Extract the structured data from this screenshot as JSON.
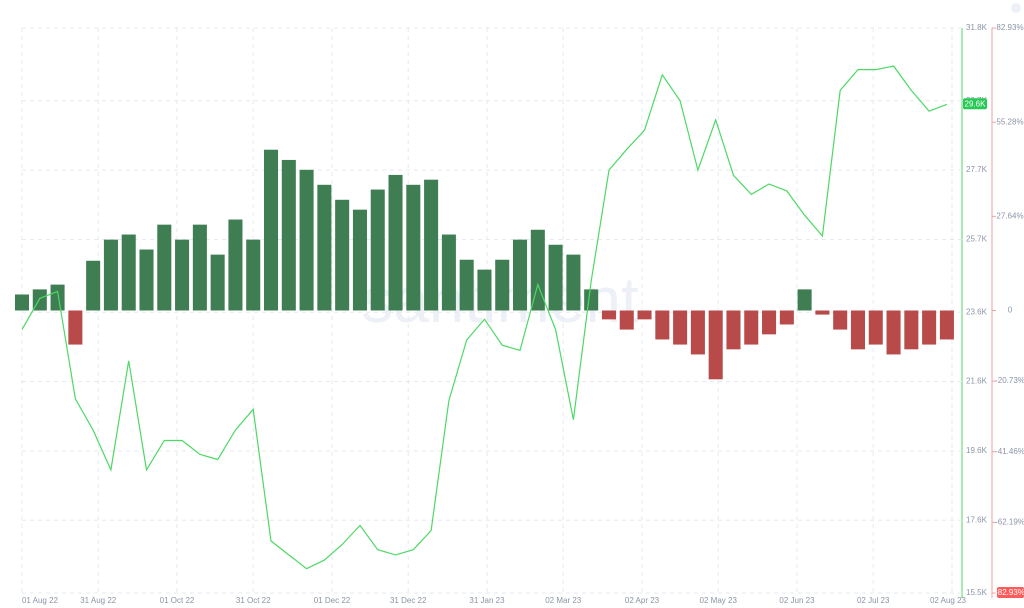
{
  "chart_data": {
    "type": "combo",
    "watermark": "santiment",
    "x": [
      "2022-08-01",
      "2022-08-08",
      "2022-08-15",
      "2022-08-22",
      "2022-08-29",
      "2022-09-05",
      "2022-09-12",
      "2022-09-19",
      "2022-09-26",
      "2022-10-03",
      "2022-10-10",
      "2022-10-17",
      "2022-10-24",
      "2022-10-31",
      "2022-11-07",
      "2022-11-14",
      "2022-11-21",
      "2022-11-28",
      "2022-12-05",
      "2022-12-12",
      "2022-12-19",
      "2022-12-26",
      "2023-01-02",
      "2023-01-09",
      "2023-01-16",
      "2023-01-23",
      "2023-01-30",
      "2023-02-06",
      "2023-02-13",
      "2023-02-20",
      "2023-02-27",
      "2023-03-06",
      "2023-03-13",
      "2023-03-20",
      "2023-03-27",
      "2023-04-03",
      "2023-04-10",
      "2023-04-17",
      "2023-04-24",
      "2023-05-01",
      "2023-05-08",
      "2023-05-15",
      "2023-05-22",
      "2023-05-29",
      "2023-06-05",
      "2023-06-12",
      "2023-06-19",
      "2023-06-26",
      "2023-07-03",
      "2023-07-10",
      "2023-07-17",
      "2023-07-24",
      "2023-07-31"
    ],
    "xlim": [
      "2022-08-01",
      "2023-08-02"
    ],
    "xticks": [
      {
        "value": "2022-08-01",
        "label": "01 Aug 22"
      },
      {
        "value": "2022-08-31",
        "label": "31 Aug 22"
      },
      {
        "value": "2022-10-01",
        "label": "01 Oct 22"
      },
      {
        "value": "2022-10-31",
        "label": "31 Oct 22"
      },
      {
        "value": "2022-12-01",
        "label": "01 Dec 22"
      },
      {
        "value": "2022-12-31",
        "label": "31 Dec 22"
      },
      {
        "value": "2023-01-31",
        "label": "31 Jan 23"
      },
      {
        "value": "2023-03-02",
        "label": "02 Mar 23"
      },
      {
        "value": "2023-04-02",
        "label": "02 Apr 23"
      },
      {
        "value": "2023-05-02",
        "label": "02 May 23"
      },
      {
        "value": "2023-06-02",
        "label": "02 Jun 23"
      },
      {
        "value": "2023-07-02",
        "label": "02 Jul 23"
      },
      {
        "value": "2023-08-02",
        "label": "02 Aug 23"
      }
    ],
    "ylim": [
      15500,
      31800
    ],
    "yticks": [
      {
        "value": 31800,
        "label": "31.8K"
      },
      {
        "value": 29700,
        "label": "29.7K"
      },
      {
        "value": 27700,
        "label": "27.7K"
      },
      {
        "value": 25700,
        "label": "25.7K"
      },
      {
        "value": 23600,
        "label": "23.6K"
      },
      {
        "value": 21600,
        "label": "21.6K"
      },
      {
        "value": 19600,
        "label": "19.6K"
      },
      {
        "value": 17600,
        "label": "17.6K"
      },
      {
        "value": 15500,
        "label": "15.5K"
      }
    ],
    "y2lim": [
      -82.93,
      82.93
    ],
    "y2ticks": [
      {
        "value": 82.93,
        "label": "82.93%"
      },
      {
        "value": 55.28,
        "label": "55.28%"
      },
      {
        "value": 27.64,
        "label": "27.64%"
      },
      0,
      {
        "value": -20.73,
        "label": "-20.73%"
      },
      {
        "value": -41.46,
        "label": "-41.46%"
      },
      {
        "value": -62.19,
        "label": "-62.19%"
      },
      {
        "value": -82.93,
        "label": "-82.93%"
      }
    ],
    "last_value": {
      "value": 29600,
      "label": "29.6K"
    },
    "grid": true,
    "series": [
      {
        "type": "bar",
        "axis": "y2",
        "color": "#3f7d52",
        "negative_color": "#b84a4a",
        "values": [
          4.7,
          6.2,
          7.6,
          -10,
          14.6,
          20.8,
          22.3,
          17.9,
          25.2,
          20.8,
          25.2,
          16.4,
          26.7,
          20.8,
          47.2,
          44.2,
          41.3,
          36.9,
          32.5,
          29.6,
          35.5,
          39.8,
          36.9,
          38.4,
          22.3,
          14.9,
          12.0,
          14.9,
          20.8,
          23.7,
          19.3,
          16.4,
          6.2,
          -2.6,
          -5.6,
          -2.6,
          -8.5,
          -10.0,
          -12.9,
          -20.2,
          -11.4,
          -10.0,
          -7.0,
          -4.1,
          6.2,
          -1.2,
          -5.6,
          -11.4,
          -10.0,
          -12.9,
          -11.4,
          -10.0,
          -8.5
        ]
      },
      {
        "type": "line",
        "color": "#4cd964",
        "values": [
          23100,
          24000,
          24200,
          21100,
          20200,
          19050,
          22200,
          19050,
          19900,
          19900,
          19500,
          19350,
          20200,
          20800,
          17000,
          16600,
          16200,
          16450,
          16900,
          17450,
          16750,
          16600,
          16750,
          17300,
          21050,
          22800,
          23400,
          22650,
          22500,
          24400,
          23100,
          20500,
          24500,
          27700,
          28300,
          28850,
          30450,
          29700,
          27700,
          29150,
          27550,
          27000,
          27300,
          27100,
          26400,
          25800,
          30000,
          30600,
          30600,
          30700,
          30000,
          29400,
          29600
        ]
      }
    ]
  }
}
